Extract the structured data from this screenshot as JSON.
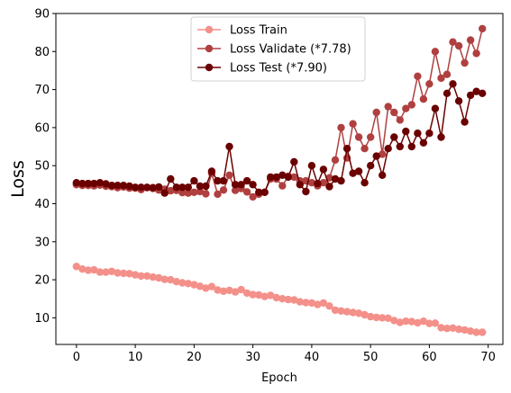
{
  "chart_data": {
    "type": "line",
    "title": "",
    "xlabel": "Epoch",
    "ylabel": "Loss",
    "ylabel_color": "#e8131d",
    "xlim": [
      -3.5,
      72.5
    ],
    "ylim": [
      3,
      90
    ],
    "xticks": [
      0,
      10,
      20,
      30,
      40,
      50,
      60,
      70
    ],
    "yticks": [
      10,
      20,
      30,
      40,
      50,
      60,
      70,
      80,
      90
    ],
    "grid": false,
    "legend_position": "top-center",
    "x": [
      0,
      1,
      2,
      3,
      4,
      5,
      6,
      7,
      8,
      9,
      10,
      11,
      12,
      13,
      14,
      15,
      16,
      17,
      18,
      19,
      20,
      21,
      22,
      23,
      24,
      25,
      26,
      27,
      28,
      29,
      30,
      31,
      32,
      33,
      34,
      35,
      36,
      37,
      38,
      39,
      40,
      41,
      42,
      43,
      44,
      45,
      46,
      47,
      48,
      49,
      50,
      51,
      52,
      53,
      54,
      55,
      56,
      57,
      58,
      59,
      60,
      61,
      62,
      63,
      64,
      65,
      66,
      67,
      68,
      69
    ],
    "series": [
      {
        "name": "Loss Train",
        "color": "#f4908a",
        "values": [
          23.5,
          22.8,
          22.5,
          22.6,
          22.0,
          22.0,
          22.2,
          21.8,
          21.7,
          21.6,
          21.3,
          21.0,
          21.0,
          20.7,
          20.5,
          20.1,
          20.0,
          19.5,
          19.2,
          19.0,
          18.7,
          18.3,
          17.8,
          18.2,
          17.3,
          17.0,
          17.2,
          16.8,
          17.4,
          16.5,
          16.1,
          16.0,
          15.6,
          15.9,
          15.3,
          15.0,
          14.8,
          14.7,
          14.2,
          14.0,
          13.9,
          13.5,
          13.9,
          13.1,
          12.0,
          11.8,
          11.6,
          11.4,
          11.2,
          10.8,
          10.3,
          10.1,
          10.0,
          9.9,
          9.3,
          8.8,
          9.1,
          9.0,
          8.7,
          9.1,
          8.5,
          8.6,
          7.4,
          7.2,
          7.3,
          7.0,
          6.8,
          6.5,
          6.2,
          6.2
        ]
      },
      {
        "name": "Loss Validate (*7.78)",
        "color": "#b04040",
        "values": [
          45.0,
          44.8,
          44.8,
          44.7,
          44.9,
          44.6,
          44.5,
          44.2,
          44.4,
          44.1,
          44.1,
          43.7,
          44.2,
          44.0,
          43.6,
          43.8,
          43.4,
          43.5,
          42.9,
          42.8,
          43.0,
          43.2,
          42.6,
          48.0,
          42.5,
          43.6,
          47.5,
          43.5,
          44.0,
          43.1,
          41.8,
          42.5,
          43.0,
          46.5,
          46.5,
          44.7,
          47.2,
          47.0,
          46.0,
          46.0,
          45.5,
          44.7,
          45.5,
          46.8,
          51.5,
          60.0,
          52.0,
          61.0,
          57.5,
          54.5,
          57.5,
          64.0,
          53.0,
          65.5,
          64.0,
          62.0,
          65.0,
          66.0,
          73.5,
          67.5,
          71.5,
          80.0,
          73.0,
          74.0,
          82.5,
          81.5,
          77.0,
          83.0,
          79.5,
          86.0
        ]
      },
      {
        "name": "Loss Test (*7.90)",
        "color": "#6b0000",
        "values": [
          45.5,
          45.3,
          45.3,
          45.3,
          45.5,
          45.2,
          44.8,
          44.8,
          44.8,
          44.6,
          44.3,
          44.3,
          44.3,
          44.2,
          44.4,
          42.8,
          46.5,
          44.3,
          44.3,
          44.3,
          46.0,
          44.6,
          44.6,
          48.5,
          46.0,
          46.0,
          55.0,
          45.0,
          45.0,
          46.0,
          45.0,
          43.0,
          43.0,
          47.0,
          47.0,
          47.5,
          47.0,
          51.0,
          45.0,
          43.2,
          50.0,
          45.3,
          49.0,
          44.5,
          46.5,
          46.0,
          54.5,
          48.0,
          48.5,
          45.5,
          50.0,
          52.5,
          47.5,
          54.5,
          57.5,
          55.0,
          59.0,
          55.0,
          58.5,
          56.0,
          58.5,
          65.0,
          57.5,
          69.0,
          71.5,
          67.0,
          61.5,
          68.5,
          69.5,
          69.0
        ]
      }
    ]
  }
}
